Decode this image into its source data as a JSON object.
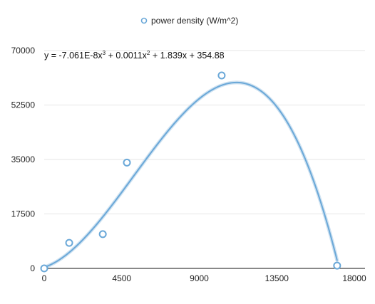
{
  "chart_data": {
    "type": "scatter",
    "series": [
      {
        "name": "power density (W/m^2)",
        "color": "#6aa8d8",
        "points": [
          {
            "x": 0,
            "y": 0
          },
          {
            "x": 1450,
            "y": 8200
          },
          {
            "x": 3400,
            "y": 11000
          },
          {
            "x": 4800,
            "y": 34000
          },
          {
            "x": 10300,
            "y": 62000
          },
          {
            "x": 17000,
            "y": 900
          }
        ]
      }
    ],
    "trendline": {
      "type": "polynomial",
      "order": 3,
      "coefficients": {
        "a": -7.061e-08,
        "b": 0.0011,
        "c": 1.839,
        "d": 354.88
      },
      "equation": {
        "prefix": "y = -7.061E-8x",
        "p1": "3",
        "mid": " + 0.0011x",
        "p2": "2",
        "suffix": " + 1.839x + 354.88"
      },
      "color": "#6aa8d8"
    },
    "xlim": [
      0,
      18000
    ],
    "ylim": [
      0,
      70000
    ],
    "xticks": [
      "0",
      "4500",
      "9000",
      "13500",
      "18000"
    ],
    "yticks": [
      "0",
      "17500",
      "35000",
      "52500",
      "70000"
    ],
    "grid": {
      "horizontal": true,
      "vertical": false,
      "color": "#e6e6e6"
    },
    "legend": {
      "position": "top-center",
      "label": "power density (W/m^2)"
    }
  }
}
